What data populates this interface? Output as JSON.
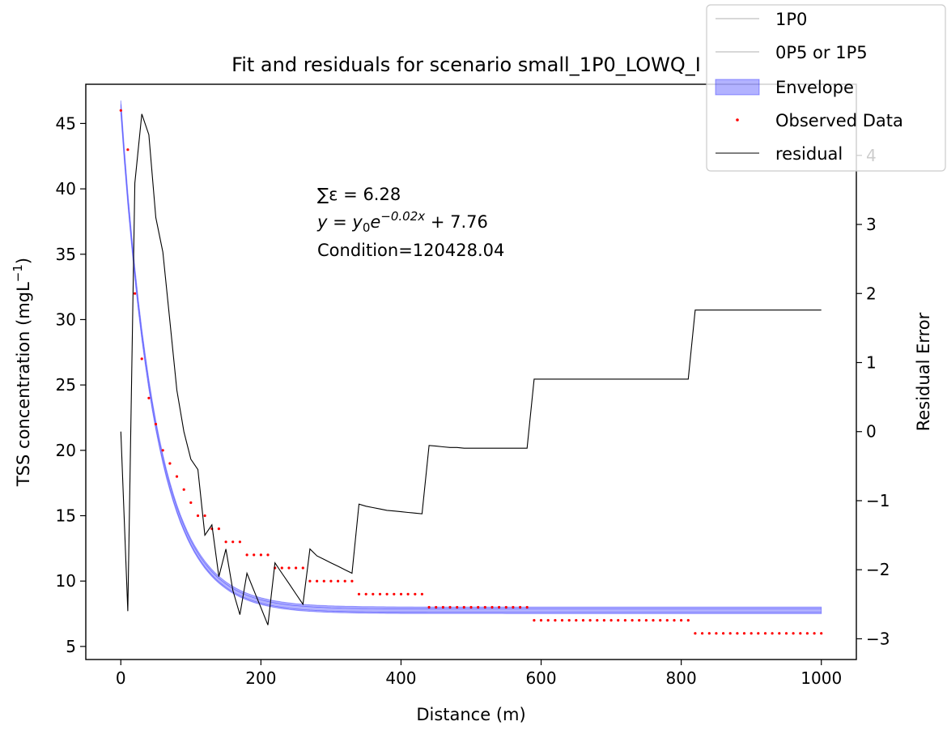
{
  "chart_data": {
    "type": "line",
    "title": "Fit and residuals for scenario small_1P0_LOWQ_I",
    "xlabel": "Distance (m)",
    "ylabel": "TSS concentration (mgL",
    "ylabel_sup": "−1",
    "ylabel_close": ")",
    "y2label": "Residual Error",
    "xlim": [
      -50,
      1050
    ],
    "ylim": [
      4,
      48
    ],
    "y2lim": [
      -3.3,
      5.03
    ],
    "x_ticks": [
      0,
      200,
      400,
      600,
      800,
      1000
    ],
    "y_ticks": [
      5,
      10,
      15,
      20,
      25,
      30,
      35,
      40,
      45
    ],
    "y2_ticks": [
      -3,
      -2,
      -1,
      0,
      1,
      2,
      3,
      4
    ],
    "y2_tick_labels": [
      "−3",
      "−2",
      "−1",
      "0",
      "1",
      "2",
      "3",
      "4"
    ],
    "legend_position": "top-right",
    "annotations": {
      "sum_label": "∑ε = 6.28",
      "equation_y": "y",
      "equation_eq": " = ",
      "equation_y0": "y",
      "equation_sub": "0",
      "equation_e": "e",
      "equation_exp": "−0.02x",
      "equation_tail": " + 7.76",
      "condition": "Condition=120428.04"
    },
    "fit": {
      "y0": 38.5,
      "k": 0.02,
      "c": 7.76,
      "band_halfwidth": 0.25
    },
    "series": [
      {
        "name": "1P0",
        "color": "#b0b0b0",
        "style": "thin line"
      },
      {
        "name": "0P5 or 1P5",
        "color": "#b0b0b0",
        "style": "thin line"
      },
      {
        "name": "Envelope",
        "color": "#0000ff",
        "style": "band"
      },
      {
        "name": "Observed Data",
        "color": "#ff0000",
        "style": "points",
        "points": [
          [
            0,
            46
          ],
          [
            10,
            43
          ],
          [
            20,
            32
          ],
          [
            30,
            27
          ],
          [
            40,
            24
          ],
          [
            50,
            22
          ],
          [
            60,
            20
          ],
          [
            70,
            19
          ],
          [
            80,
            18
          ],
          [
            90,
            17
          ],
          [
            100,
            16
          ],
          [
            110,
            15
          ],
          [
            120,
            15
          ],
          [
            130,
            14
          ],
          [
            140,
            14
          ],
          [
            150,
            13
          ],
          [
            160,
            13
          ],
          [
            170,
            13
          ],
          [
            180,
            12
          ],
          [
            190,
            12
          ],
          [
            200,
            12
          ],
          [
            210,
            12
          ],
          [
            220,
            11
          ],
          [
            230,
            11
          ],
          [
            240,
            11
          ],
          [
            250,
            11
          ],
          [
            260,
            11
          ],
          [
            270,
            10
          ],
          [
            280,
            10
          ],
          [
            290,
            10
          ],
          [
            300,
            10
          ],
          [
            310,
            10
          ],
          [
            320,
            10
          ],
          [
            330,
            10
          ],
          [
            340,
            9
          ],
          [
            350,
            9
          ],
          [
            360,
            9
          ],
          [
            370,
            9
          ],
          [
            380,
            9
          ],
          [
            390,
            9
          ],
          [
            400,
            9
          ],
          [
            410,
            9
          ],
          [
            420,
            9
          ],
          [
            430,
            9
          ],
          [
            440,
            8
          ],
          [
            450,
            8
          ],
          [
            460,
            8
          ],
          [
            470,
            8
          ],
          [
            480,
            8
          ],
          [
            490,
            8
          ],
          [
            500,
            8
          ],
          [
            510,
            8
          ],
          [
            520,
            8
          ],
          [
            530,
            8
          ],
          [
            540,
            8
          ],
          [
            550,
            8
          ],
          [
            560,
            8
          ],
          [
            570,
            8
          ],
          [
            580,
            8
          ],
          [
            590,
            7
          ],
          [
            600,
            7
          ],
          [
            610,
            7
          ],
          [
            620,
            7
          ],
          [
            630,
            7
          ],
          [
            640,
            7
          ],
          [
            650,
            7
          ],
          [
            660,
            7
          ],
          [
            670,
            7
          ],
          [
            680,
            7
          ],
          [
            690,
            7
          ],
          [
            700,
            7
          ],
          [
            710,
            7
          ],
          [
            720,
            7
          ],
          [
            730,
            7
          ],
          [
            740,
            7
          ],
          [
            750,
            7
          ],
          [
            760,
            7
          ],
          [
            770,
            7
          ],
          [
            780,
            7
          ],
          [
            790,
            7
          ],
          [
            800,
            7
          ],
          [
            810,
            7
          ],
          [
            820,
            6
          ],
          [
            830,
            6
          ],
          [
            840,
            6
          ],
          [
            850,
            6
          ],
          [
            860,
            6
          ],
          [
            870,
            6
          ],
          [
            880,
            6
          ],
          [
            890,
            6
          ],
          [
            900,
            6
          ],
          [
            910,
            6
          ],
          [
            920,
            6
          ],
          [
            930,
            6
          ],
          [
            940,
            6
          ],
          [
            950,
            6
          ],
          [
            960,
            6
          ],
          [
            970,
            6
          ],
          [
            980,
            6
          ],
          [
            990,
            6
          ],
          [
            1000,
            6
          ]
        ]
      },
      {
        "name": "residual",
        "color": "#000000",
        "style": "line",
        "axis": "right",
        "points": [
          [
            0,
            0
          ],
          [
            10,
            -2.6
          ],
          [
            20,
            3.6
          ],
          [
            30,
            4.6
          ],
          [
            40,
            4.3
          ],
          [
            50,
            3.1
          ],
          [
            60,
            2.6
          ],
          [
            70,
            1.6
          ],
          [
            80,
            0.6
          ],
          [
            90,
            0
          ],
          [
            100,
            -0.4
          ],
          [
            110,
            -0.55
          ],
          [
            120,
            -1.5
          ],
          [
            130,
            -1.35
          ],
          [
            140,
            -2.1
          ],
          [
            150,
            -1.7
          ],
          [
            160,
            -2.3
          ],
          [
            170,
            -2.65
          ],
          [
            180,
            -2.05
          ],
          [
            190,
            -2.3
          ],
          [
            200,
            -2.55
          ],
          [
            210,
            -2.8
          ],
          [
            220,
            -1.9
          ],
          [
            230,
            -2.05
          ],
          [
            240,
            -2.2
          ],
          [
            250,
            -2.35
          ],
          [
            260,
            -2.5
          ],
          [
            270,
            -1.7
          ],
          [
            280,
            -1.8
          ],
          [
            290,
            -1.85
          ],
          [
            300,
            -1.9
          ],
          [
            310,
            -1.95
          ],
          [
            320,
            -2.0
          ],
          [
            330,
            -2.05
          ],
          [
            340,
            -1.05
          ],
          [
            350,
            -1.08
          ],
          [
            360,
            -1.1
          ],
          [
            370,
            -1.12
          ],
          [
            380,
            -1.14
          ],
          [
            390,
            -1.15
          ],
          [
            400,
            -1.16
          ],
          [
            410,
            -1.17
          ],
          [
            420,
            -1.18
          ],
          [
            430,
            -1.19
          ],
          [
            440,
            -0.2
          ],
          [
            450,
            -0.21
          ],
          [
            460,
            -0.22
          ],
          [
            470,
            -0.23
          ],
          [
            480,
            -0.23
          ],
          [
            490,
            -0.24
          ],
          [
            500,
            -0.24
          ],
          [
            510,
            -0.24
          ],
          [
            520,
            -0.24
          ],
          [
            530,
            -0.24
          ],
          [
            540,
            -0.24
          ],
          [
            550,
            -0.24
          ],
          [
            560,
            -0.24
          ],
          [
            570,
            -0.24
          ],
          [
            580,
            -0.24
          ],
          [
            590,
            0.76
          ],
          [
            600,
            0.76
          ],
          [
            700,
            0.76
          ],
          [
            810,
            0.76
          ],
          [
            820,
            1.76
          ],
          [
            900,
            1.76
          ],
          [
            1000,
            1.76
          ]
        ]
      }
    ]
  }
}
